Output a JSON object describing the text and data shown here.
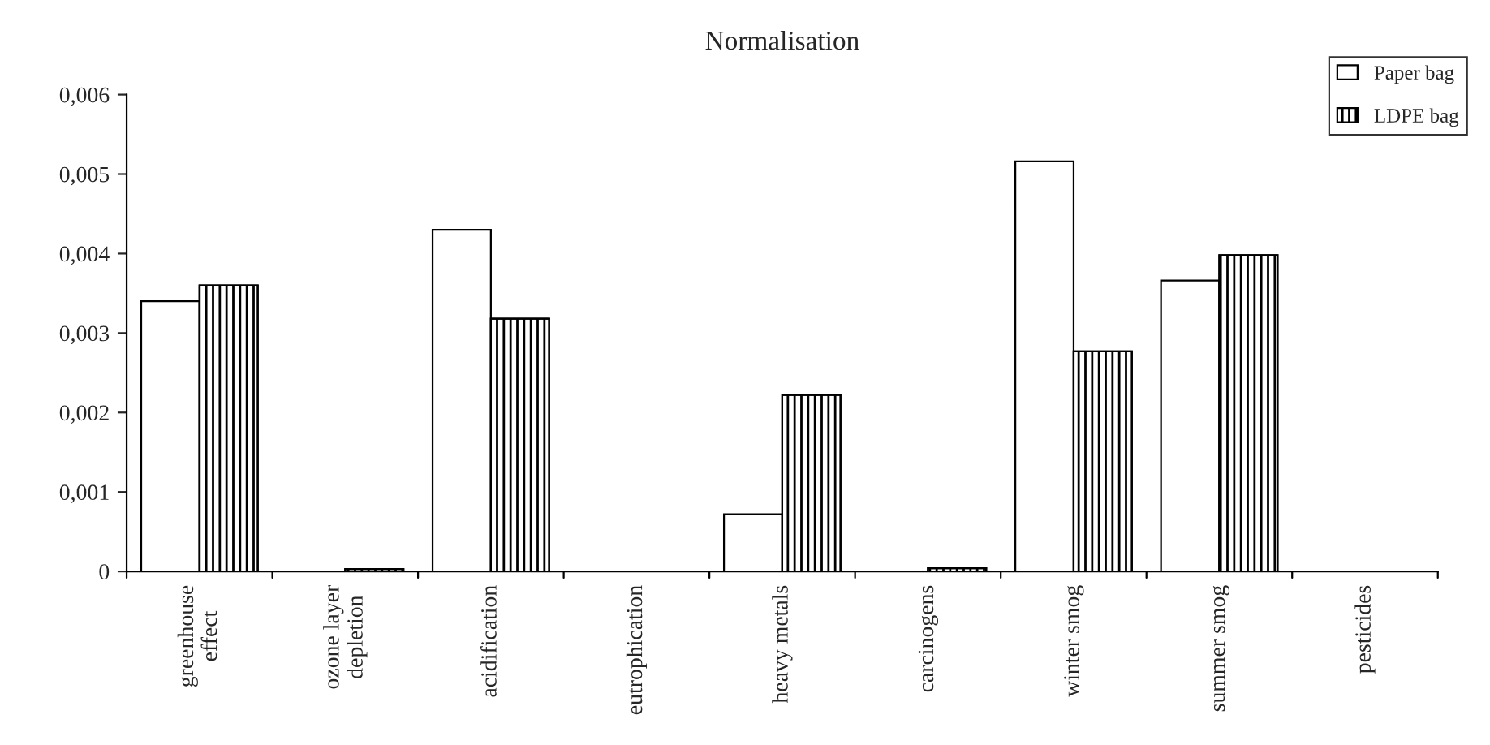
{
  "chart_data": {
    "type": "bar",
    "title": "Normalisation",
    "categories": [
      "greenhouse\neffect",
      "ozone layer\ndepletion",
      "acidification",
      "eutrophication",
      "heavy metals",
      "carcinogens",
      "winter smog",
      "summer smog",
      "pesticides"
    ],
    "series": [
      {
        "name": "Paper bag",
        "color": "#ffffff",
        "values": [
          0.0034,
          0,
          0.0043,
          0,
          0.00072,
          0,
          0.00516,
          0.00366,
          0
        ]
      },
      {
        "name": "LDPE bag",
        "color": "#000000",
        "values": [
          0.0036,
          3e-05,
          0.00318,
          0,
          0.00222,
          4e-05,
          0.00277,
          0.00398,
          0
        ]
      }
    ],
    "ylim": [
      0,
      0.006
    ],
    "yticks": [
      {
        "value": 0,
        "label": "0"
      },
      {
        "value": 0.001,
        "label": "0,001"
      },
      {
        "value": 0.002,
        "label": "0,002"
      },
      {
        "value": 0.003,
        "label": "0,003"
      },
      {
        "value": 0.004,
        "label": "0,004"
      },
      {
        "value": 0.005,
        "label": "0,005"
      },
      {
        "value": 0.006,
        "label": "0,006"
      }
    ],
    "grid": false,
    "legend": "top right"
  }
}
